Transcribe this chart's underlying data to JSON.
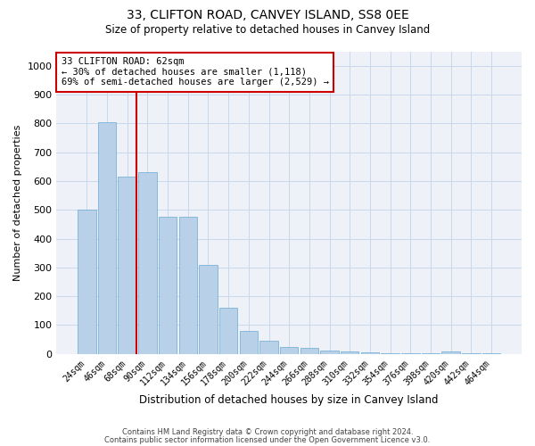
{
  "title_line1": "33, CLIFTON ROAD, CANVEY ISLAND, SS8 0EE",
  "title_line2": "Size of property relative to detached houses in Canvey Island",
  "xlabel": "Distribution of detached houses by size in Canvey Island",
  "ylabel": "Number of detached properties",
  "bar_color": "#b8d0e8",
  "bar_edge_color": "#6aaad4",
  "grid_color": "#c8d8ea",
  "background_color": "#eef2f8",
  "annotation_box_color": "#cc0000",
  "annotation_text": "33 CLIFTON ROAD: 62sqm\n← 30% of detached houses are smaller (1,118)\n69% of semi-detached houses are larger (2,529) →",
  "vline_color": "#cc0000",
  "categories": [
    "24sqm",
    "46sqm",
    "68sqm",
    "90sqm",
    "112sqm",
    "134sqm",
    "156sqm",
    "178sqm",
    "200sqm",
    "222sqm",
    "244sqm",
    "266sqm",
    "288sqm",
    "310sqm",
    "332sqm",
    "354sqm",
    "376sqm",
    "398sqm",
    "420sqm",
    "442sqm",
    "464sqm"
  ],
  "values": [
    500,
    805,
    615,
    630,
    475,
    475,
    310,
    160,
    80,
    47,
    25,
    22,
    13,
    10,
    5,
    4,
    3,
    3,
    10,
    2,
    2
  ],
  "ylim": [
    0,
    1050
  ],
  "yticks": [
    0,
    100,
    200,
    300,
    400,
    500,
    600,
    700,
    800,
    900,
    1000
  ],
  "footnote_line1": "Contains HM Land Registry data © Crown copyright and database right 2024.",
  "footnote_line2": "Contains public sector information licensed under the Open Government Licence v3.0.",
  "figsize": [
    6.0,
    5.0
  ],
  "dpi": 100
}
